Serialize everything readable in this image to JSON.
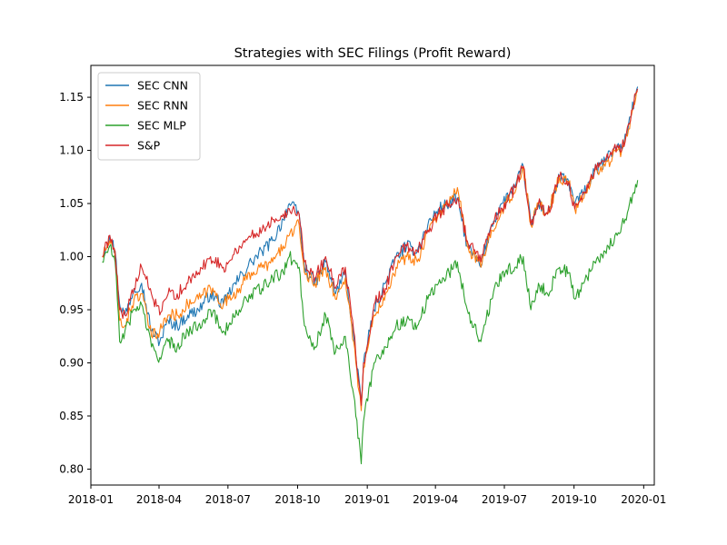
{
  "chart_data": {
    "type": "line",
    "title": "Strategies with SEC Filings (Profit Reward)",
    "xlabel": "",
    "ylabel": "",
    "x_axis_type": "date",
    "xlim": [
      "2018-01-01",
      "2020-01-15"
    ],
    "ylim": [
      0.785,
      1.18
    ],
    "x_ticks": [
      "2018-01",
      "2018-04",
      "2018-07",
      "2018-10",
      "2019-01",
      "2019-04",
      "2019-07",
      "2019-10",
      "2020-01"
    ],
    "y_ticks": [
      0.8,
      0.85,
      0.9,
      0.95,
      1.0,
      1.05,
      1.1,
      1.15
    ],
    "legend_position": "upper-left",
    "grid": false,
    "x": [
      "2018-01-16",
      "2018-01-26",
      "2018-02-02",
      "2018-02-08",
      "2018-02-15",
      "2018-02-27",
      "2018-03-09",
      "2018-03-22",
      "2018-04-02",
      "2018-04-13",
      "2018-04-25",
      "2018-05-09",
      "2018-05-23",
      "2018-06-08",
      "2018-06-25",
      "2018-07-02",
      "2018-07-16",
      "2018-08-01",
      "2018-08-15",
      "2018-08-29",
      "2018-09-12",
      "2018-09-20",
      "2018-10-03",
      "2018-10-10",
      "2018-10-24",
      "2018-11-07",
      "2018-11-20",
      "2018-12-03",
      "2018-12-14",
      "2018-12-24",
      "2018-12-27",
      "2019-01-10",
      "2019-01-25",
      "2019-02-08",
      "2019-02-22",
      "2019-03-08",
      "2019-03-22",
      "2019-04-05",
      "2019-04-19",
      "2019-04-30",
      "2019-05-13",
      "2019-05-31",
      "2019-06-14",
      "2019-06-28",
      "2019-07-15",
      "2019-07-26",
      "2019-08-05",
      "2019-08-15",
      "2019-08-27",
      "2019-09-12",
      "2019-09-24",
      "2019-10-02",
      "2019-10-14",
      "2019-10-28",
      "2019-11-11",
      "2019-11-27",
      "2019-12-03",
      "2019-12-12",
      "2019-12-24"
    ],
    "series": [
      {
        "name": "SEC CNN",
        "color": "#1f77b4",
        "values": [
          1.0,
          1.02,
          1.005,
          0.955,
          0.945,
          0.97,
          0.975,
          0.93,
          0.92,
          0.94,
          0.935,
          0.945,
          0.95,
          0.965,
          0.955,
          0.965,
          0.98,
          0.995,
          1.005,
          1.015,
          1.035,
          1.05,
          1.04,
          0.99,
          0.975,
          0.995,
          0.965,
          0.985,
          0.925,
          0.86,
          0.9,
          0.95,
          0.975,
          1.0,
          1.01,
          1.005,
          1.03,
          1.045,
          1.05,
          1.055,
          1.01,
          0.99,
          1.03,
          1.05,
          1.065,
          1.085,
          1.03,
          1.05,
          1.04,
          1.075,
          1.07,
          1.05,
          1.06,
          1.08,
          1.09,
          1.105,
          1.1,
          1.125,
          1.16
        ]
      },
      {
        "name": "SEC RNN",
        "color": "#ff7f0e",
        "values": [
          1.0,
          1.015,
          1.0,
          0.94,
          0.935,
          0.96,
          0.965,
          0.925,
          0.93,
          0.945,
          0.945,
          0.955,
          0.96,
          0.97,
          0.955,
          0.96,
          0.97,
          0.985,
          0.99,
          0.995,
          1.01,
          1.02,
          1.03,
          0.985,
          0.975,
          0.99,
          0.96,
          0.98,
          0.92,
          0.855,
          0.895,
          0.945,
          0.965,
          0.99,
          1.0,
          0.995,
          1.025,
          1.04,
          1.05,
          1.065,
          1.01,
          0.99,
          1.025,
          1.045,
          1.06,
          1.085,
          1.03,
          1.05,
          1.04,
          1.075,
          1.07,
          1.045,
          1.055,
          1.08,
          1.085,
          1.1,
          1.1,
          1.12,
          1.155
        ]
      },
      {
        "name": "SEC MLP",
        "color": "#2ca02c",
        "values": [
          0.995,
          1.01,
          0.995,
          0.92,
          0.93,
          0.95,
          0.955,
          0.915,
          0.905,
          0.92,
          0.915,
          0.93,
          0.935,
          0.95,
          0.93,
          0.935,
          0.95,
          0.965,
          0.97,
          0.98,
          0.985,
          1.0,
          0.99,
          0.935,
          0.915,
          0.945,
          0.91,
          0.925,
          0.87,
          0.805,
          0.845,
          0.9,
          0.915,
          0.935,
          0.94,
          0.935,
          0.96,
          0.975,
          0.985,
          0.995,
          0.95,
          0.92,
          0.96,
          0.985,
          0.99,
          1.0,
          0.95,
          0.975,
          0.965,
          0.99,
          0.985,
          0.96,
          0.975,
          0.995,
          1.005,
          1.02,
          1.03,
          1.045,
          1.072
        ]
      },
      {
        "name": "S&P",
        "color": "#d62728",
        "values": [
          1.0,
          1.02,
          1.005,
          0.95,
          0.945,
          0.97,
          0.99,
          0.965,
          0.945,
          0.965,
          0.965,
          0.975,
          0.985,
          1.0,
          0.99,
          0.995,
          1.01,
          1.02,
          1.025,
          1.035,
          1.04,
          1.045,
          1.04,
          0.995,
          0.98,
          1.0,
          0.97,
          0.99,
          0.93,
          0.86,
          0.9,
          0.955,
          0.97,
          1.0,
          1.01,
          1.005,
          1.025,
          1.04,
          1.05,
          1.055,
          1.015,
          0.995,
          1.03,
          1.045,
          1.065,
          1.085,
          1.03,
          1.05,
          1.04,
          1.075,
          1.07,
          1.045,
          1.06,
          1.08,
          1.09,
          1.105,
          1.1,
          1.125,
          1.158
        ]
      }
    ]
  }
}
